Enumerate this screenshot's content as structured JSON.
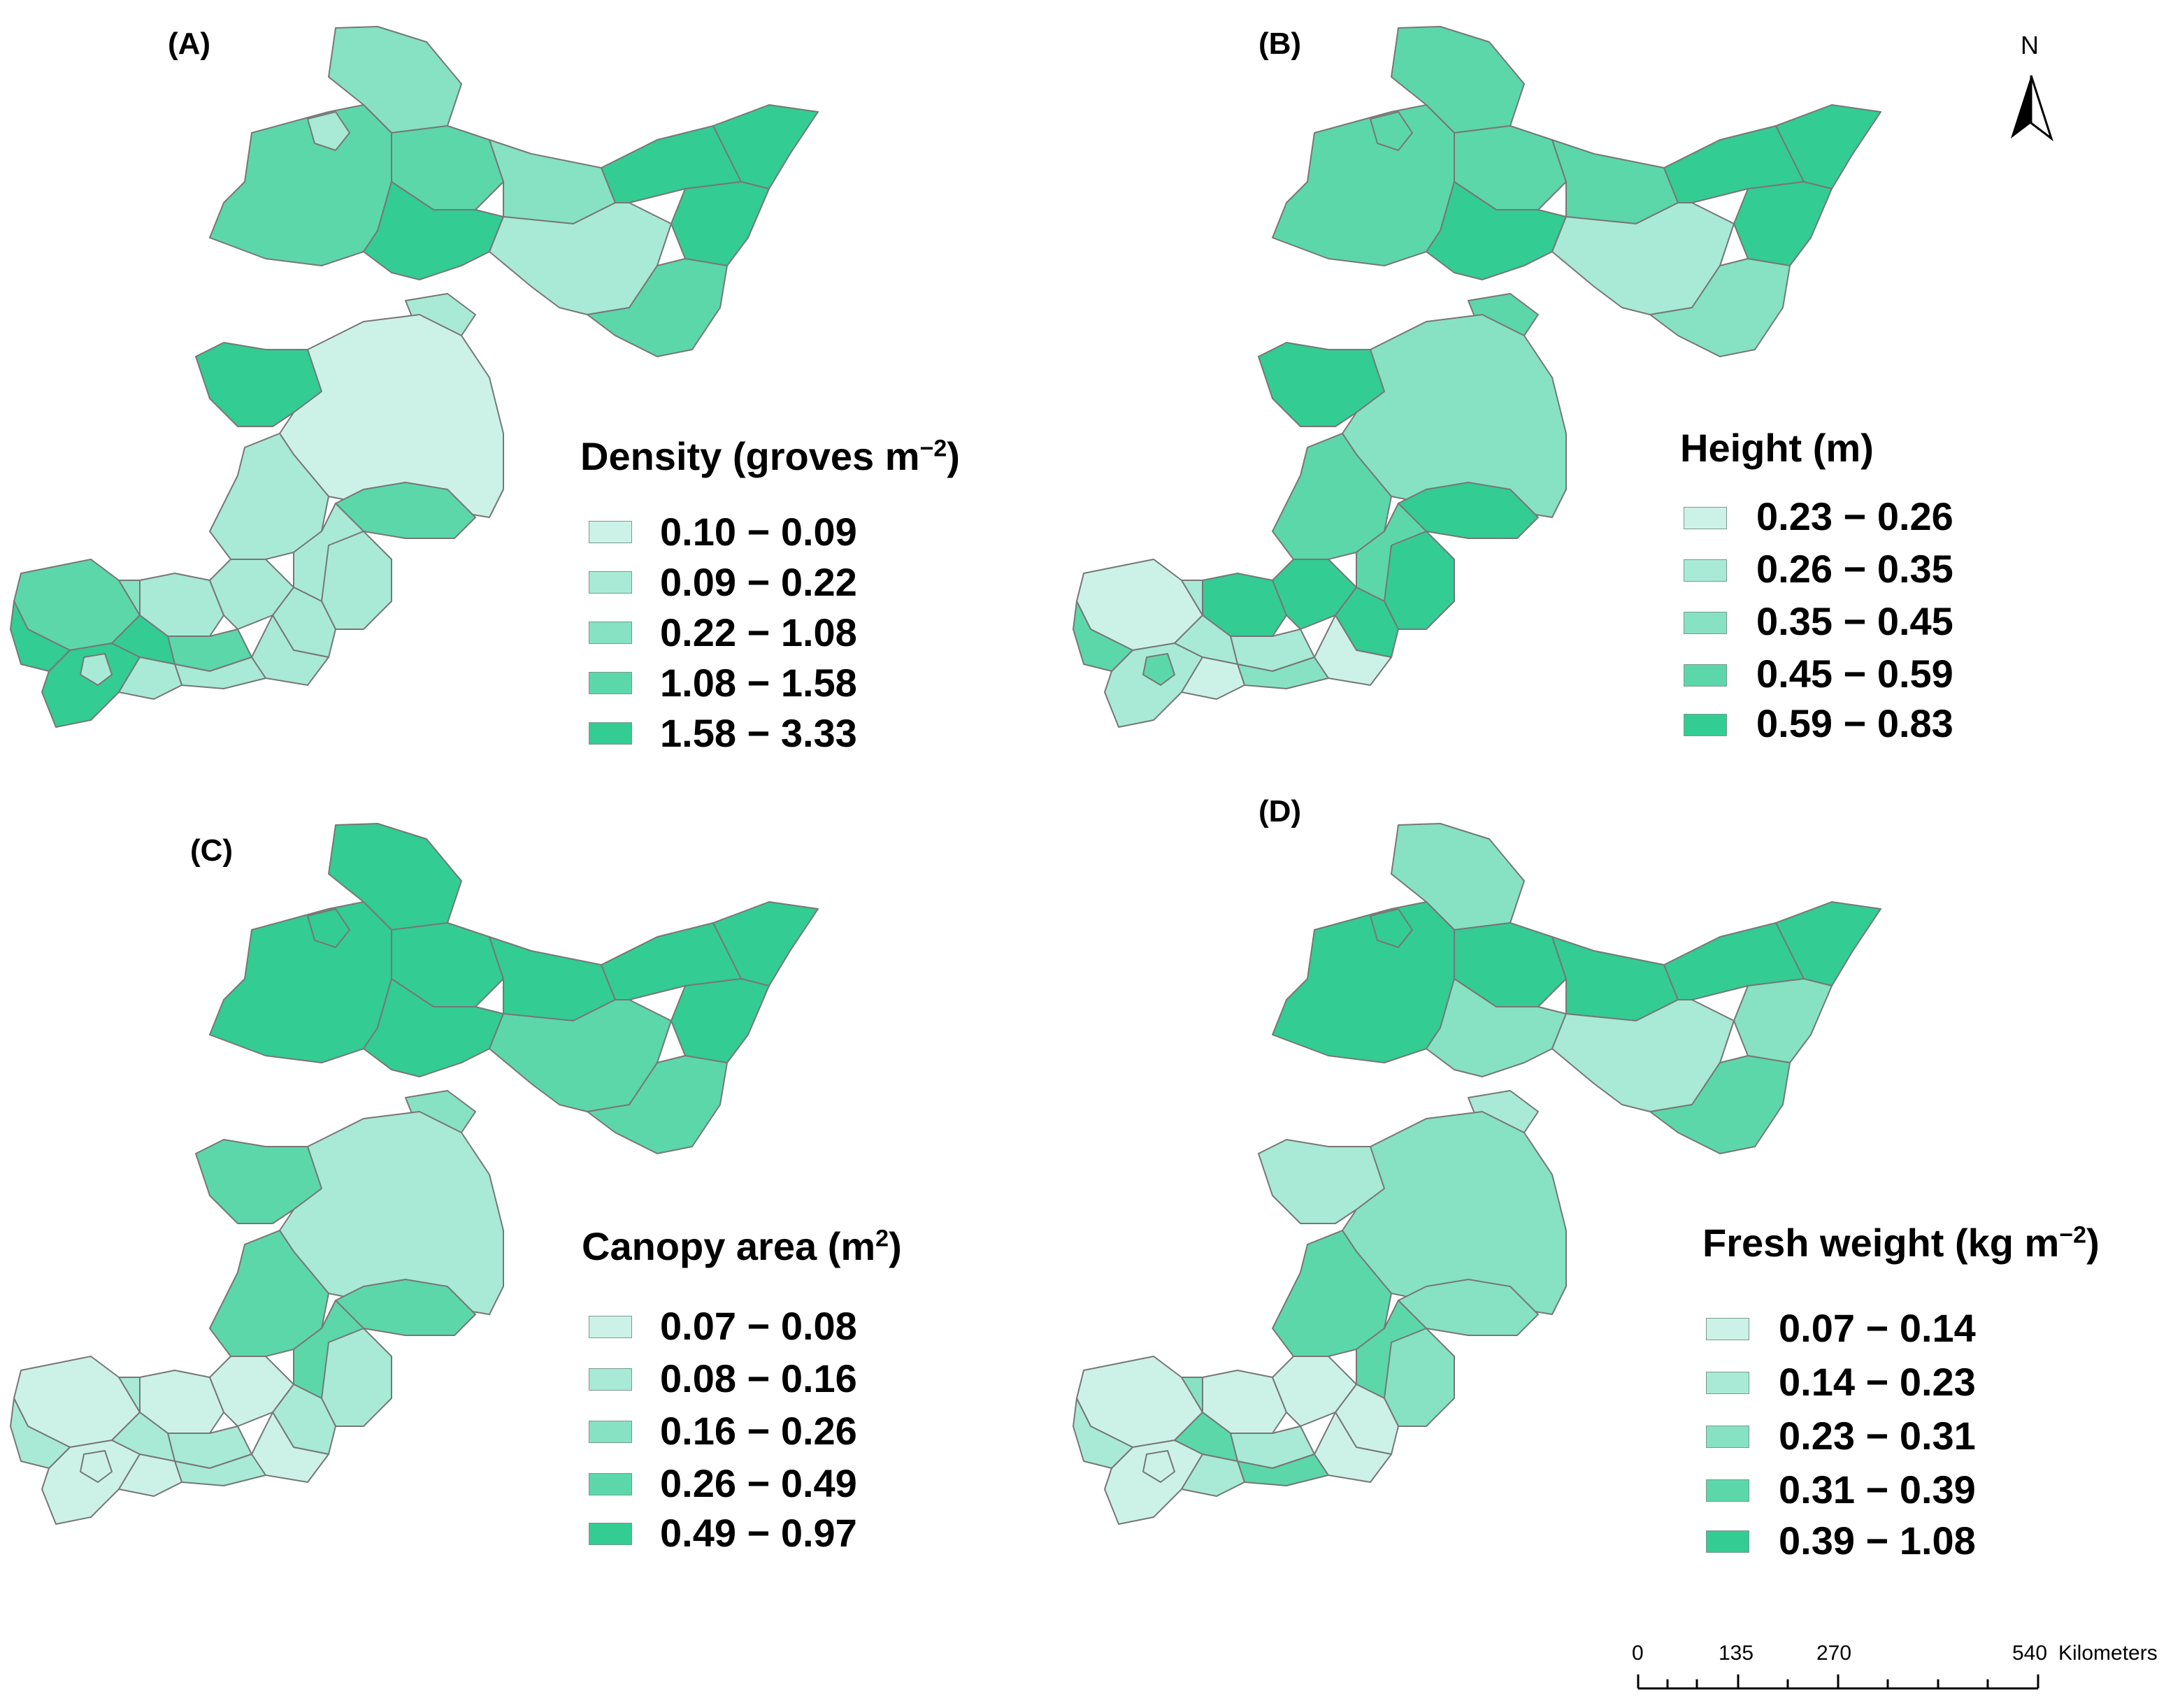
{
  "colors": {
    "class1": "#ccf2e8",
    "class2": "#a8ead6",
    "class3": "#86e2c2",
    "class4": "#5cd7aa",
    "class5": "#33cc93",
    "outline": "#777777"
  },
  "panels": [
    {
      "label": "(A)",
      "legend_title": "Density (groves m",
      "legend_title_sup": "−2",
      "legend_title_end": ")",
      "classes": [
        "0.10 − 0.09",
        "0.09 − 0.22",
        "0.22 − 1.08",
        "1.08 − 1.58",
        "1.58 − 3.33"
      ]
    },
    {
      "label": "(B)",
      "legend_title": "Height (m)",
      "legend_title_sup": "",
      "legend_title_end": "",
      "classes": [
        "0.23 − 0.26",
        "0.26 − 0.35",
        "0.35 − 0.45",
        "0.45 − 0.59",
        "0.59 − 0.83"
      ]
    },
    {
      "label": "(C)",
      "legend_title": "Canopy area (m",
      "legend_title_sup": "2",
      "legend_title_end": ")",
      "classes": [
        "0.07 − 0.08",
        "0.08 − 0.16",
        "0.16 − 0.26",
        "0.26 − 0.49",
        "0.49 − 0.97"
      ]
    },
    {
      "label": "(D)",
      "legend_title": "Fresh weight (kg m",
      "legend_title_sup": "−2",
      "legend_title_end": ")",
      "classes": [
        "0.07 − 0.14",
        "0.14 − 0.23",
        "0.23 − 0.31",
        "0.31 − 0.39",
        "0.39 − 1.08"
      ]
    }
  ],
  "region_classes": {
    "A": [
      3,
      4,
      2,
      4,
      3,
      5,
      5,
      5,
      5,
      2,
      4,
      2,
      5,
      1,
      4,
      2,
      2,
      2,
      2,
      2,
      2,
      4,
      4,
      5,
      5,
      5,
      2,
      2,
      2,
      3,
      2
    ],
    "B": [
      4,
      4,
      4,
      4,
      4,
      5,
      5,
      5,
      5,
      2,
      3,
      4,
      5,
      3,
      5,
      4,
      4,
      5,
      5,
      5,
      5,
      1,
      2,
      2,
      4,
      2,
      3,
      1,
      4,
      2,
      1
    ],
    "C": [
      5,
      5,
      5,
      5,
      5,
      5,
      5,
      5,
      5,
      4,
      4,
      3,
      4,
      2,
      4,
      4,
      4,
      2,
      2,
      1,
      1,
      1,
      2,
      1,
      2,
      2,
      2,
      1,
      1,
      2,
      1
    ],
    "D": [
      3,
      5,
      5,
      5,
      5,
      5,
      5,
      3,
      3,
      2,
      4,
      2,
      2,
      3,
      3,
      4,
      4,
      3,
      1,
      1,
      1,
      1,
      2,
      1,
      2,
      4,
      4,
      2,
      1,
      3,
      1
    ]
  },
  "north_arrow": {
    "label": "N"
  },
  "scale_bar": {
    "ticks": [
      "0",
      "135",
      "270",
      "540"
    ],
    "unit": "Kilometers"
  }
}
